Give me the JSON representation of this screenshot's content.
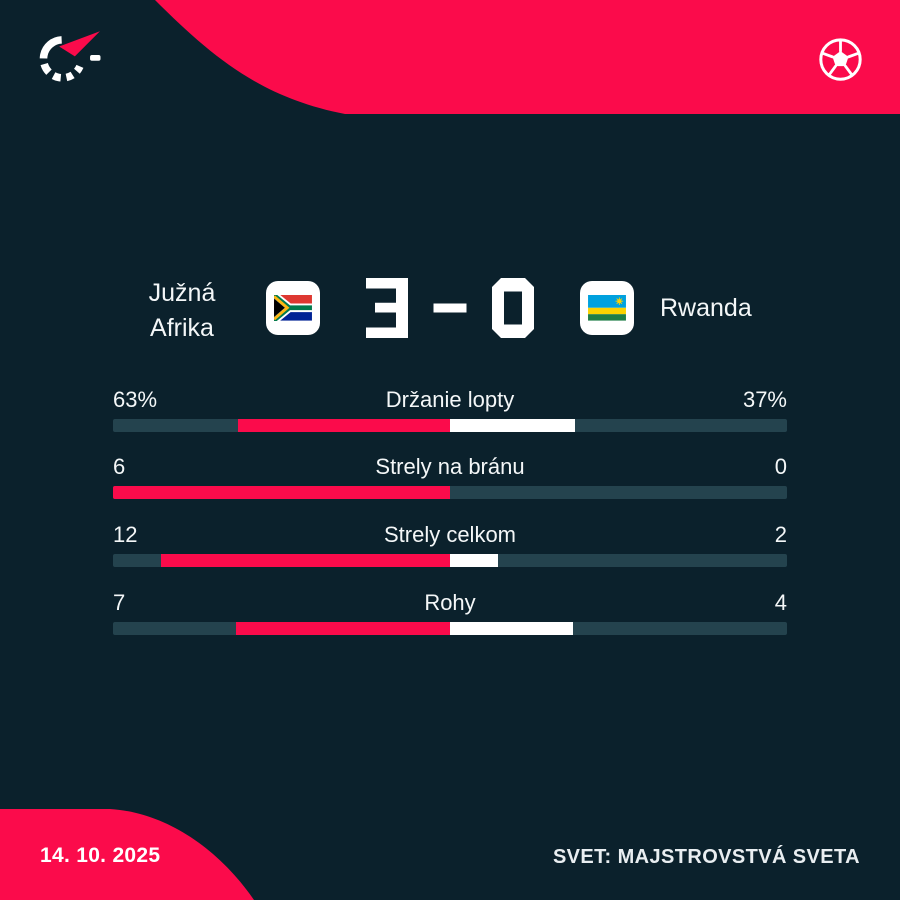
{
  "icons": {
    "logo": "flashscore-stopwatch-logo",
    "sport": "football-ball-icon",
    "home_flag": "south-africa-flag",
    "away_flag": "rwanda-flag"
  },
  "scoreboard": {
    "home_team": {
      "name_line1": "Južná",
      "name_line2": "Afrika"
    },
    "away_team": {
      "name": "Rwanda"
    },
    "score_home": "3",
    "score_separator": "-",
    "score_away": "0"
  },
  "stats": {
    "rows": [
      {
        "label": "Držanie lopty",
        "home_display": "63%",
        "away_display": "37%",
        "home_value": 63,
        "away_value": 37
      },
      {
        "label": "Strely na bránu",
        "home_display": "6",
        "away_display": "0",
        "home_value": 6,
        "away_value": 0
      },
      {
        "label": "Strely celkom",
        "home_display": "12",
        "away_display": "2",
        "home_value": 12,
        "away_value": 2
      },
      {
        "label": "Rohy",
        "home_display": "7",
        "away_display": "4",
        "home_value": 7,
        "away_value": 4
      }
    ]
  },
  "footer": {
    "date": "14. 10. 2025",
    "competition": "SVET: MAJSTROVSTVÁ SVETA"
  },
  "colors": {
    "background": "#0b212c",
    "accent_pink": "#fb0b4b",
    "bar_track": "#24434e",
    "bar_home": "#fb0b4b",
    "bar_away": "#ffffff",
    "text": "#f4f7f8"
  },
  "chart_data": {
    "type": "bar",
    "title": "Južná Afrika 3 - 0 Rwanda",
    "subtitle": "Match statistics",
    "categories": [
      "Držanie lopty",
      "Strely na bránu",
      "Strely celkom",
      "Rohy"
    ],
    "series": [
      {
        "name": "Južná Afrika",
        "values": [
          63,
          6,
          12,
          7
        ]
      },
      {
        "name": "Rwanda",
        "values": [
          37,
          0,
          2,
          4
        ]
      }
    ],
    "layout": "horizontal diverging bars; home segment (pink) extends left from center, away segment (white) extends right from center, each proportional to its share of the row total across half the track width",
    "value_format": {
      "Držanie lopty": "percent",
      "others": "count"
    },
    "grid": false,
    "legend_position": "none"
  }
}
